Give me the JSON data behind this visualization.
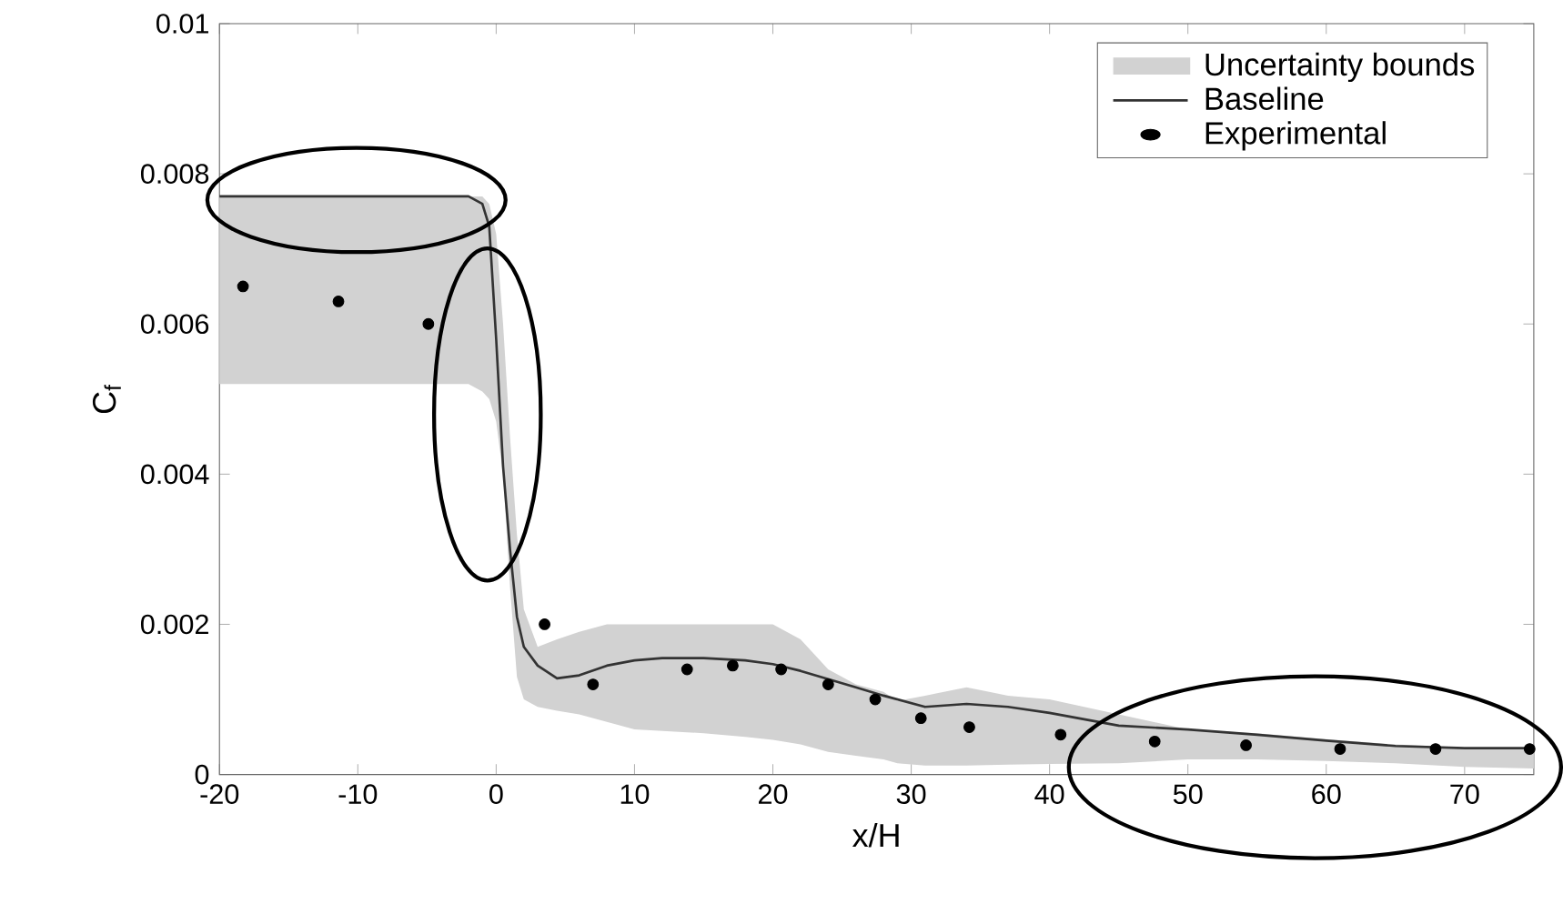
{
  "chart_data": {
    "type": "line",
    "xlabel": "x/H",
    "ylabel": "C$_{f}$",
    "xlim": [
      -20,
      75
    ],
    "xticks": [
      -20,
      -10,
      0,
      10,
      20,
      30,
      40,
      50,
      60,
      70
    ],
    "ylim": [
      0,
      0.01
    ],
    "yticks": [
      0,
      0.002,
      0.004,
      0.006,
      0.008,
      0.01
    ],
    "legend": "top right",
    "annotations": [
      "Uncertainty bounds"
    ],
    "series": [
      {
        "name": "Baseline",
        "color": "#333333",
        "marker": "none",
        "x": [
          -20,
          -10,
          -3,
          -2,
          -1,
          -0.5,
          0,
          0.5,
          1,
          1.5,
          2,
          3,
          4.4,
          6,
          8,
          10,
          12,
          15,
          18,
          20,
          22,
          24,
          26,
          28,
          29,
          31,
          34,
          37,
          40,
          45,
          50,
          55,
          60,
          65,
          70,
          75
        ],
        "values": [
          0.0077,
          0.0077,
          0.0077,
          0.0077,
          0.0076,
          0.0073,
          0.0058,
          0.0041,
          0.003,
          0.0021,
          0.0017,
          0.00145,
          0.00128,
          0.00132,
          0.00145,
          0.00152,
          0.00155,
          0.00155,
          0.00152,
          0.00147,
          0.00138,
          0.00127,
          0.00116,
          0.00105,
          0.001,
          0.0009,
          0.00094,
          0.0009,
          0.00082,
          0.00065,
          0.0006,
          0.00053,
          0.00045,
          0.00038,
          0.00035,
          0.00035
        ],
        "upper": [
          0.0077,
          0.0077,
          0.0077,
          0.0077,
          0.0077,
          0.0076,
          0.0072,
          0.006,
          0.0045,
          0.0032,
          0.0022,
          0.0017,
          0.0018,
          0.0019,
          0.002,
          0.002,
          0.002,
          0.002,
          0.002,
          0.002,
          0.0018,
          0.0014,
          0.0012,
          0.0011,
          0.00098,
          0.00105,
          0.00116,
          0.00105,
          0.001,
          0.0008,
          0.0006,
          0.00055,
          0.00047,
          0.0004,
          0.00036,
          0.00035
        ],
        "lower": [
          0.0052,
          0.0052,
          0.0052,
          0.0052,
          0.0051,
          0.005,
          0.0047,
          0.004,
          0.0025,
          0.0013,
          0.001,
          0.0009,
          0.00085,
          0.0008,
          0.0007,
          0.0006,
          0.00058,
          0.00055,
          0.0005,
          0.00046,
          0.0004,
          0.0003,
          0.00025,
          0.0002,
          0.00015,
          0.00012,
          0.00012,
          0.00013,
          0.00014,
          0.00015,
          0.0002,
          0.0002,
          0.00018,
          0.00015,
          0.0001,
          8e-05
        ]
      },
      {
        "name": "Experimental",
        "type": "scatter",
        "color": "#000000",
        "marker": "circle",
        "x": [
          -18.3,
          -11.4,
          -4.9,
          3.5,
          7,
          13.8,
          17.1,
          20.6,
          24,
          27.4,
          30.7,
          34.2,
          40.8,
          47.6,
          54.2,
          61,
          67.9,
          74.7
        ],
        "values": [
          0.0065,
          0.0063,
          0.006,
          0.002,
          0.0012,
          0.0014,
          0.00145,
          0.0014,
          0.0012,
          0.001,
          0.00075,
          0.00063,
          0.00053,
          0.00044,
          0.00039,
          0.00034,
          0.00034,
          0.00034
        ]
      }
    ]
  }
}
